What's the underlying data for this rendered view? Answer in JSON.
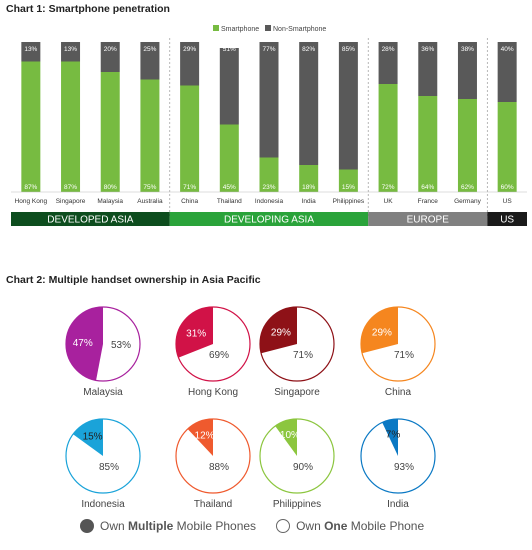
{
  "chart_data": [
    {
      "type": "bar",
      "stacked": true,
      "title": "Chart 1: Smartphone penetration",
      "categories": [
        "Hong Kong",
        "Singapore",
        "Malaysia",
        "Australia",
        "China",
        "Thailand",
        "Indonesia",
        "India",
        "Philippines",
        "UK",
        "France",
        "Germany",
        "US"
      ],
      "series": [
        {
          "name": "Smartphone",
          "color": "#77bb41",
          "values": [
            87,
            87,
            80,
            75,
            71,
            45,
            23,
            18,
            15,
            72,
            64,
            62,
            60
          ]
        },
        {
          "name": "Non-Smartphone",
          "color": "#595959",
          "values": [
            13,
            13,
            20,
            25,
            29,
            51,
            77,
            82,
            85,
            28,
            36,
            38,
            40
          ]
        }
      ],
      "series_labels": {
        "Smartphone": [
          "87%",
          "87%",
          "80%",
          "75%",
          "71%",
          "45%",
          "23%",
          "18%",
          "15%",
          "72%",
          "64%",
          "62%",
          "60%"
        ],
        "Non-Smartphone": [
          "13%",
          "13%",
          "20%",
          "25%",
          "29%",
          "51%",
          "77%",
          "82%",
          "85%",
          "28%",
          "36%",
          "38%",
          "40%"
        ]
      },
      "ylim": [
        0,
        100
      ],
      "legend_position": "top",
      "groups": [
        {
          "label": "DEVELOPED ASIA",
          "start": 0,
          "end": 3,
          "color": "#0d4d1e",
          "text_color": "#ffffff"
        },
        {
          "label": "DEVELOPING ASIA",
          "start": 4,
          "end": 8,
          "color": "#2aa33a",
          "text_color": "#ffffff"
        },
        {
          "label": "EUROPE",
          "start": 9,
          "end": 11,
          "color": "#808080",
          "text_color": "#ffffff"
        },
        {
          "label": "US",
          "start": 12,
          "end": 12,
          "color": "#1a1a1a",
          "text_color": "#ffffff"
        }
      ]
    },
    {
      "type": "pie",
      "title": "Chart 2: Multiple handset ownership in Asia Pacific",
      "series_names": [
        "Own Multiple Mobile Phones",
        "Own One Mobile Phone"
      ],
      "pies": [
        {
          "label": "Malaysia",
          "multiple": 47,
          "one": 53,
          "color": "#a8219e",
          "fill_label_color": "#ffffff"
        },
        {
          "label": "Hong Kong",
          "multiple": 31,
          "one": 69,
          "color": "#d11247",
          "fill_label_color": "#ffffff"
        },
        {
          "label": "Singapore",
          "multiple": 29,
          "one": 71,
          "color": "#8e1117",
          "fill_label_color": "#ffffff"
        },
        {
          "label": "China",
          "multiple": 29,
          "one": 71,
          "color": "#f5861f",
          "fill_label_color": "#ffffff"
        },
        {
          "label": "Indonesia",
          "multiple": 15,
          "one": 85,
          "color": "#1aa3d9",
          "fill_label_color": "#222222"
        },
        {
          "label": "Thailand",
          "multiple": 12,
          "one": 88,
          "color": "#ef5a2e",
          "fill_label_color": "#ffffff"
        },
        {
          "label": "Philippines",
          "multiple": 10,
          "one": 90,
          "color": "#8cc63f",
          "fill_label_color": "#ffffff"
        },
        {
          "label": "India",
          "multiple": 7,
          "one": 93,
          "color": "#0b79c4",
          "fill_label_color": "#222222"
        }
      ]
    }
  ],
  "legend2": {
    "multiple_prefix": "Own ",
    "multiple_bold": "Multiple",
    "multiple_suffix": " Mobile Phones",
    "one_prefix": "Own ",
    "one_bold": "One",
    "one_suffix": " Mobile Phone"
  }
}
